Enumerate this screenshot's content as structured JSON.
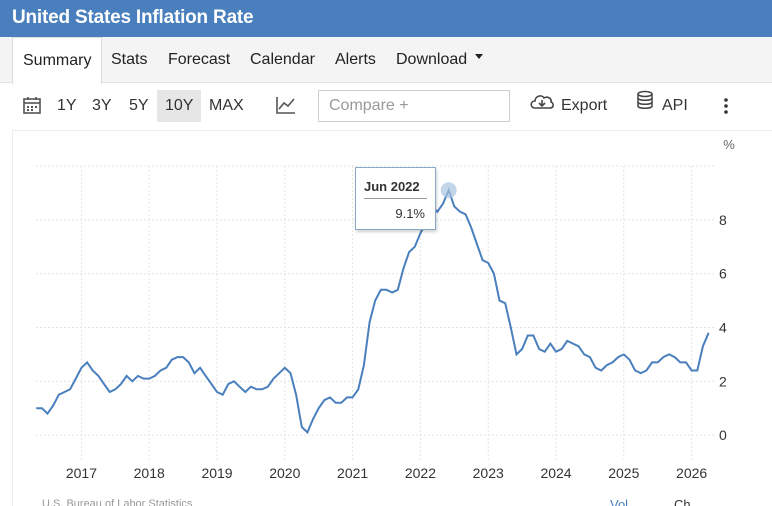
{
  "header": {
    "title": "United States Inflation Rate"
  },
  "tabs": [
    {
      "label": "Summary",
      "active": true
    },
    {
      "label": "Stats"
    },
    {
      "label": "Forecast"
    },
    {
      "label": "Calendar"
    },
    {
      "label": "Alerts"
    },
    {
      "label": "Download"
    }
  ],
  "toolbar": {
    "ranges": [
      "1Y",
      "3Y",
      "5Y",
      "10Y",
      "MAX"
    ],
    "selected_range": "10Y",
    "compare_placeholder": "Compare +",
    "export_label": "Export",
    "api_label": "API",
    "icons": [
      "calendar-icon",
      "chart-type-icon",
      "cloud-download-icon",
      "database-icon",
      "more-vert-icon"
    ]
  },
  "tooltip": {
    "date": "Jun 2022",
    "value": "9.1%"
  },
  "footer": {
    "source": "U.S. Bureau of Labor Statistics",
    "legend_a": "Vol",
    "legend_b": "Ch"
  },
  "colors": {
    "accent": "#4a7fbe",
    "line": "#4a7fbe"
  },
  "chart_data": {
    "type": "line",
    "ylabel": "%",
    "ylim": [
      -1,
      10
    ],
    "xlim": [
      2016.33,
      2026.33
    ],
    "y_ticks": [
      0,
      2,
      4,
      6,
      8
    ],
    "x_ticks": [
      "2017",
      "2018",
      "2019",
      "2020",
      "2021",
      "2022",
      "2023",
      "2024",
      "2025",
      "2026"
    ],
    "grid": true,
    "series": [
      {
        "x": [
          "2016-05",
          "2016-06",
          "2016-07",
          "2016-08",
          "2016-09",
          "2016-10",
          "2016-11",
          "2016-12",
          "2017-01",
          "2017-02",
          "2017-03",
          "2017-04",
          "2017-05",
          "2017-06",
          "2017-07",
          "2017-08",
          "2017-09",
          "2017-10",
          "2017-11",
          "2017-12",
          "2018-01",
          "2018-02",
          "2018-03",
          "2018-04",
          "2018-05",
          "2018-06",
          "2018-07",
          "2018-08",
          "2018-09",
          "2018-10",
          "2018-11",
          "2018-12",
          "2019-01",
          "2019-02",
          "2019-03",
          "2019-04",
          "2019-05",
          "2019-06",
          "2019-07",
          "2019-08",
          "2019-09",
          "2019-10",
          "2019-11",
          "2019-12",
          "2020-01",
          "2020-02",
          "2020-03",
          "2020-04",
          "2020-05",
          "2020-06",
          "2020-07",
          "2020-08",
          "2020-09",
          "2020-10",
          "2020-11",
          "2020-12",
          "2021-01",
          "2021-02",
          "2021-03",
          "2021-04",
          "2021-05",
          "2021-06",
          "2021-07",
          "2021-08",
          "2021-09",
          "2021-10",
          "2021-11",
          "2021-12",
          "2022-01",
          "2022-02",
          "2022-03",
          "2022-04",
          "2022-05",
          "2022-06",
          "2022-07",
          "2022-08",
          "2022-09",
          "2022-10",
          "2022-11",
          "2022-12",
          "2023-01",
          "2023-02",
          "2023-03",
          "2023-04",
          "2023-05",
          "2023-06",
          "2023-07",
          "2023-08",
          "2023-09",
          "2023-10",
          "2023-11",
          "2023-12",
          "2024-01",
          "2024-02",
          "2024-03",
          "2024-04",
          "2024-05",
          "2024-06",
          "2024-07",
          "2024-08",
          "2024-09",
          "2024-10",
          "2024-11",
          "2024-12",
          "2025-01",
          "2025-02",
          "2025-03",
          "2025-04",
          "2025-05",
          "2025-06",
          "2025-07",
          "2025-08",
          "2025-09",
          "2025-10",
          "2025-11",
          "2025-12",
          "2026-01",
          "2026-02",
          "2026-03",
          "2026-04"
        ],
        "y": [
          1.0,
          1.0,
          0.8,
          1.1,
          1.5,
          1.6,
          1.7,
          2.1,
          2.5,
          2.7,
          2.4,
          2.2,
          1.9,
          1.6,
          1.7,
          1.9,
          2.2,
          2.0,
          2.2,
          2.1,
          2.1,
          2.2,
          2.4,
          2.5,
          2.8,
          2.9,
          2.9,
          2.7,
          2.3,
          2.5,
          2.2,
          1.9,
          1.6,
          1.5,
          1.9,
          2.0,
          1.8,
          1.6,
          1.8,
          1.7,
          1.7,
          1.8,
          2.1,
          2.3,
          2.5,
          2.3,
          1.5,
          0.3,
          0.1,
          0.6,
          1.0,
          1.3,
          1.4,
          1.2,
          1.2,
          1.4,
          1.4,
          1.7,
          2.6,
          4.2,
          5.0,
          5.4,
          5.4,
          5.3,
          5.4,
          6.2,
          6.8,
          7.0,
          7.5,
          7.9,
          8.5,
          8.3,
          8.6,
          9.1,
          8.5,
          8.3,
          8.2,
          7.7,
          7.1,
          6.5,
          6.4,
          6.0,
          5.0,
          4.9,
          4.0,
          3.0,
          3.2,
          3.7,
          3.7,
          3.2,
          3.1,
          3.4,
          3.1,
          3.2,
          3.5,
          3.4,
          3.3,
          3.0,
          2.9,
          2.5,
          2.4,
          2.6,
          2.7,
          2.9,
          3.0,
          2.8,
          2.4,
          2.3,
          2.4,
          2.7,
          2.7,
          2.9,
          3.0,
          2.9,
          2.7,
          2.7,
          2.4,
          2.4,
          3.3,
          3.8
        ]
      }
    ],
    "highlight": {
      "x": "2022-06",
      "y": 9.1
    }
  }
}
